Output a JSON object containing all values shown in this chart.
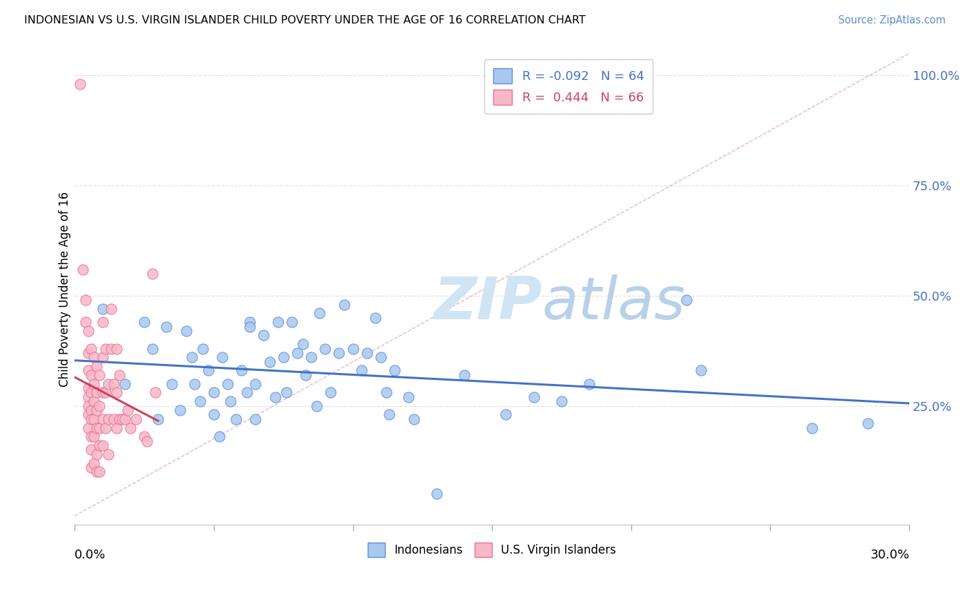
{
  "title": "INDONESIAN VS U.S. VIRGIN ISLANDER CHILD POVERTY UNDER THE AGE OF 16 CORRELATION CHART",
  "source": "Source: ZipAtlas.com",
  "ylabel": "Child Poverty Under the Age of 16",
  "xlim": [
    0.0,
    0.3
  ],
  "ylim": [
    -0.02,
    1.05
  ],
  "legend_r_blue": "-0.092",
  "legend_n_blue": "64",
  "legend_r_pink": "0.444",
  "legend_n_pink": "66",
  "blue_color": "#A8C8F0",
  "pink_color": "#F8B8C8",
  "blue_edge_color": "#5B8FD0",
  "pink_edge_color": "#E87090",
  "blue_line_color": "#4472C4",
  "pink_line_color": "#D04060",
  "ref_line_color": "#E8A0B0",
  "grid_color": "#E0E0E8",
  "watermark_color": "#D0E4F4",
  "blue_dots": [
    [
      0.01,
      0.47
    ],
    [
      0.018,
      0.3
    ],
    [
      0.025,
      0.44
    ],
    [
      0.028,
      0.38
    ],
    [
      0.03,
      0.22
    ],
    [
      0.033,
      0.43
    ],
    [
      0.035,
      0.3
    ],
    [
      0.038,
      0.24
    ],
    [
      0.04,
      0.42
    ],
    [
      0.042,
      0.36
    ],
    [
      0.043,
      0.3
    ],
    [
      0.045,
      0.26
    ],
    [
      0.046,
      0.38
    ],
    [
      0.048,
      0.33
    ],
    [
      0.05,
      0.28
    ],
    [
      0.05,
      0.23
    ],
    [
      0.052,
      0.18
    ],
    [
      0.053,
      0.36
    ],
    [
      0.055,
      0.3
    ],
    [
      0.056,
      0.26
    ],
    [
      0.058,
      0.22
    ],
    [
      0.06,
      0.33
    ],
    [
      0.062,
      0.28
    ],
    [
      0.063,
      0.44
    ],
    [
      0.063,
      0.43
    ],
    [
      0.065,
      0.3
    ],
    [
      0.065,
      0.22
    ],
    [
      0.068,
      0.41
    ],
    [
      0.07,
      0.35
    ],
    [
      0.072,
      0.27
    ],
    [
      0.073,
      0.44
    ],
    [
      0.075,
      0.36
    ],
    [
      0.076,
      0.28
    ],
    [
      0.078,
      0.44
    ],
    [
      0.08,
      0.37
    ],
    [
      0.082,
      0.39
    ],
    [
      0.083,
      0.32
    ],
    [
      0.085,
      0.36
    ],
    [
      0.087,
      0.25
    ],
    [
      0.088,
      0.46
    ],
    [
      0.09,
      0.38
    ],
    [
      0.092,
      0.28
    ],
    [
      0.095,
      0.37
    ],
    [
      0.097,
      0.48
    ],
    [
      0.1,
      0.38
    ],
    [
      0.103,
      0.33
    ],
    [
      0.105,
      0.37
    ],
    [
      0.108,
      0.45
    ],
    [
      0.11,
      0.36
    ],
    [
      0.112,
      0.28
    ],
    [
      0.113,
      0.23
    ],
    [
      0.115,
      0.33
    ],
    [
      0.12,
      0.27
    ],
    [
      0.122,
      0.22
    ],
    [
      0.13,
      0.05
    ],
    [
      0.14,
      0.32
    ],
    [
      0.155,
      0.23
    ],
    [
      0.165,
      0.27
    ],
    [
      0.175,
      0.26
    ],
    [
      0.185,
      0.3
    ],
    [
      0.22,
      0.49
    ],
    [
      0.225,
      0.33
    ],
    [
      0.265,
      0.2
    ],
    [
      0.285,
      0.21
    ]
  ],
  "pink_dots": [
    [
      0.002,
      0.98
    ],
    [
      0.003,
      0.56
    ],
    [
      0.004,
      0.49
    ],
    [
      0.004,
      0.44
    ],
    [
      0.005,
      0.42
    ],
    [
      0.005,
      0.37
    ],
    [
      0.005,
      0.33
    ],
    [
      0.005,
      0.29
    ],
    [
      0.005,
      0.27
    ],
    [
      0.005,
      0.25
    ],
    [
      0.005,
      0.23
    ],
    [
      0.005,
      0.2
    ],
    [
      0.006,
      0.38
    ],
    [
      0.006,
      0.32
    ],
    [
      0.006,
      0.28
    ],
    [
      0.006,
      0.24
    ],
    [
      0.006,
      0.22
    ],
    [
      0.006,
      0.18
    ],
    [
      0.006,
      0.15
    ],
    [
      0.006,
      0.11
    ],
    [
      0.007,
      0.36
    ],
    [
      0.007,
      0.3
    ],
    [
      0.007,
      0.26
    ],
    [
      0.007,
      0.22
    ],
    [
      0.007,
      0.18
    ],
    [
      0.007,
      0.12
    ],
    [
      0.008,
      0.34
    ],
    [
      0.008,
      0.28
    ],
    [
      0.008,
      0.24
    ],
    [
      0.008,
      0.2
    ],
    [
      0.008,
      0.14
    ],
    [
      0.008,
      0.1
    ],
    [
      0.009,
      0.32
    ],
    [
      0.009,
      0.25
    ],
    [
      0.009,
      0.2
    ],
    [
      0.009,
      0.16
    ],
    [
      0.009,
      0.1
    ],
    [
      0.01,
      0.44
    ],
    [
      0.01,
      0.36
    ],
    [
      0.01,
      0.28
    ],
    [
      0.01,
      0.22
    ],
    [
      0.01,
      0.16
    ],
    [
      0.011,
      0.38
    ],
    [
      0.011,
      0.28
    ],
    [
      0.011,
      0.2
    ],
    [
      0.012,
      0.3
    ],
    [
      0.012,
      0.22
    ],
    [
      0.012,
      0.14
    ],
    [
      0.013,
      0.47
    ],
    [
      0.013,
      0.38
    ],
    [
      0.014,
      0.3
    ],
    [
      0.014,
      0.22
    ],
    [
      0.015,
      0.38
    ],
    [
      0.015,
      0.28
    ],
    [
      0.015,
      0.2
    ],
    [
      0.016,
      0.32
    ],
    [
      0.016,
      0.22
    ],
    [
      0.017,
      0.22
    ],
    [
      0.018,
      0.22
    ],
    [
      0.019,
      0.24
    ],
    [
      0.02,
      0.2
    ],
    [
      0.022,
      0.22
    ],
    [
      0.025,
      0.18
    ],
    [
      0.026,
      0.17
    ],
    [
      0.028,
      0.55
    ],
    [
      0.029,
      0.28
    ]
  ],
  "pink_reg_xrange": [
    0.0,
    0.03
  ],
  "blue_reg_xrange": [
    0.0,
    0.3
  ]
}
